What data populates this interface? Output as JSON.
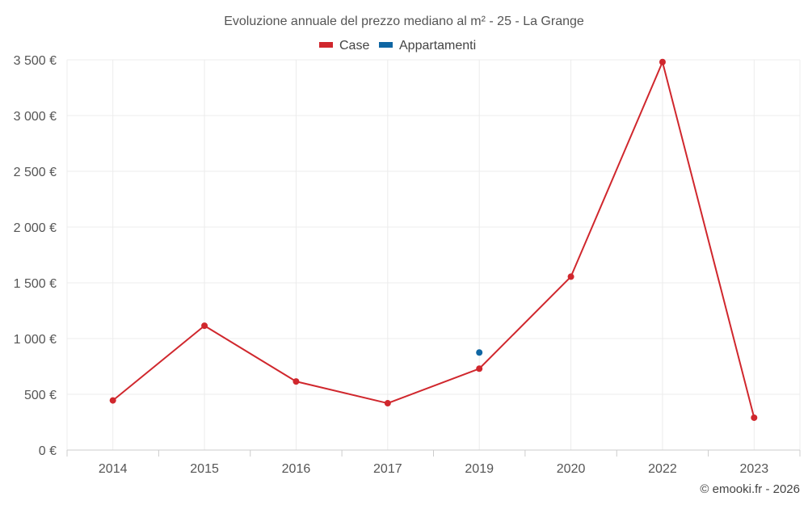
{
  "chart_data": {
    "type": "line",
    "title": "Evoluzione annuale del prezzo mediano al m² - 25 - La Grange",
    "categories": [
      "2014",
      "2015",
      "2016",
      "2017",
      "2019",
      "2020",
      "2022",
      "2023"
    ],
    "series": [
      {
        "name": "Case",
        "color": "#d0272d",
        "values": [
          445,
          1115,
          615,
          420,
          730,
          1555,
          3480,
          290
        ]
      },
      {
        "name": "Appartamenti",
        "color": "#0f66a3",
        "values": [
          null,
          null,
          null,
          null,
          875,
          null,
          null,
          null
        ]
      }
    ],
    "y_ticks": [
      "0 €",
      "500 €",
      "1 000 €",
      "1 500 €",
      "2 000 €",
      "2 500 €",
      "3 000 €",
      "3 500 €"
    ],
    "ylim": [
      0,
      3500
    ],
    "grid": true,
    "legend_position": "top-center",
    "xlabel": "",
    "ylabel": ""
  },
  "credit": "© emooki.fr - 2026"
}
